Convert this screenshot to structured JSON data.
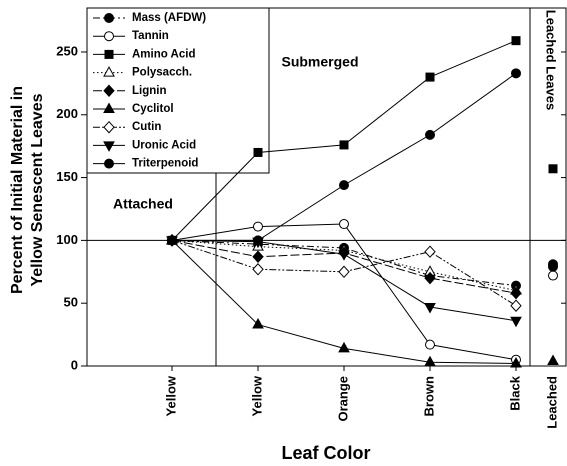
{
  "chart_data": {
    "type": "line",
    "xlabel": "Leaf Color",
    "ylabel": [
      "Percent of Initial Material in",
      "Yellow Senescent Leaves"
    ],
    "panel_labels": [
      "Attached",
      "Submerged"
    ],
    "categories": [
      "Yellow",
      "Yellow",
      "Orange",
      "Brown",
      "Black"
    ],
    "ylim": [
      0,
      285
    ],
    "yticks": [
      0,
      50,
      100,
      150,
      200,
      250
    ],
    "reference_line": 100,
    "leached": {
      "category": "Leached",
      "label": "Leached Leaves"
    },
    "series": [
      {
        "name": "Mass (AFDW)",
        "marker": "circle",
        "line_style": "dash-dot",
        "values": [
          100,
          97,
          94,
          72,
          64
        ],
        "leached": 81
      },
      {
        "name": "Tannin",
        "marker": "circle-open",
        "line_style": "solid",
        "values": [
          100,
          111,
          113,
          17,
          5
        ],
        "leached": 72
      },
      {
        "name": "Amino Acid",
        "marker": "square",
        "line_style": "solid",
        "values": [
          100,
          170,
          176,
          230,
          259
        ],
        "leached": 157
      },
      {
        "name": "Polysacch.",
        "marker": "triangle-open",
        "line_style": "dotted",
        "values": [
          100,
          95,
          92,
          75,
          60
        ],
        "leached": null
      },
      {
        "name": "Lignin",
        "marker": "diamond",
        "line_style": "dash",
        "values": [
          100,
          87,
          90,
          70,
          58
        ],
        "leached": null
      },
      {
        "name": "Cyclitol",
        "marker": "triangle",
        "line_style": "solid",
        "values": [
          100,
          33,
          14,
          3,
          2
        ],
        "leached": 4
      },
      {
        "name": "Cutin",
        "marker": "diamond-open",
        "line_style": "dash-dot-dot",
        "values": [
          100,
          77,
          75,
          91,
          48
        ],
        "leached": null
      },
      {
        "name": "Uronic Acid",
        "marker": "triangle-down",
        "line_style": "solid",
        "values": [
          100,
          99,
          89,
          47,
          36
        ],
        "leached": null
      },
      {
        "name": "Triterpenoid",
        "marker": "circle",
        "line_style": "solid",
        "values": [
          100,
          100,
          144,
          184,
          233
        ],
        "leached": 79
      }
    ]
  }
}
